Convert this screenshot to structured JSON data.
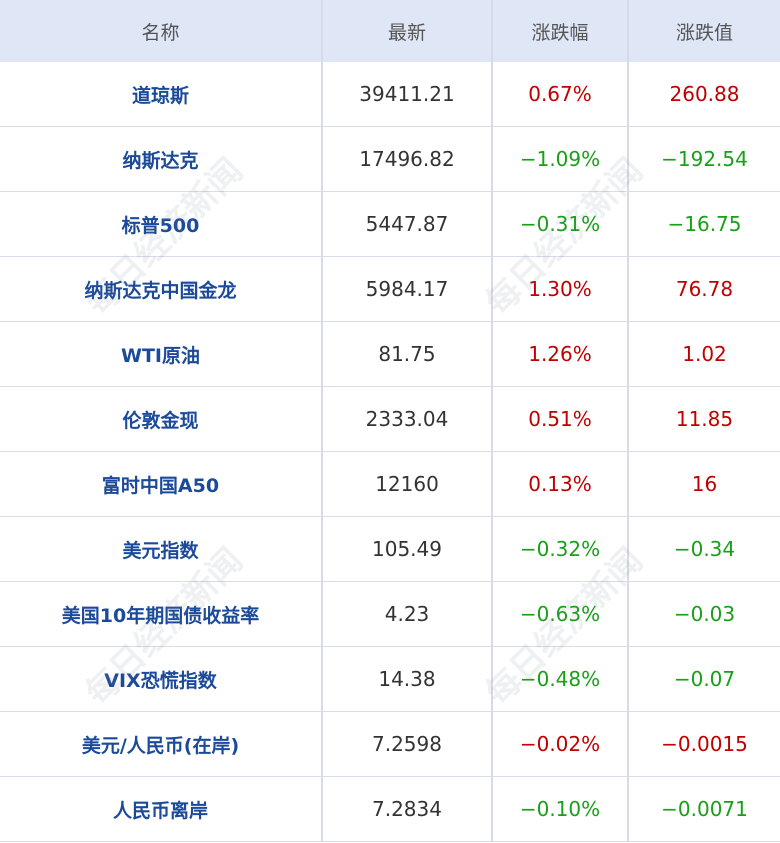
{
  "header": [
    "名称",
    "最新",
    "涨跌幅",
    "涨跌值"
  ],
  "watermark": "每日经济新闻",
  "rows": [
    {
      "name": "道琼斯",
      "latest": "39411.21",
      "pct": "0.67%",
      "change": "260.88",
      "color": "#c00000"
    },
    {
      "name": "纳斯达克",
      "latest": "17496.82",
      "pct": "−1.09%",
      "change": "−192.54",
      "color": "#18a018"
    },
    {
      "name": "标普500",
      "latest": "5447.87",
      "pct": "−0.31%",
      "change": "−16.75",
      "color": "#18a018"
    },
    {
      "name": "纳斯达克中国金龙",
      "latest": "5984.17",
      "pct": "1.30%",
      "change": "76.78",
      "color": "#c00000"
    },
    {
      "name": "WTI原油",
      "latest": "81.75",
      "pct": "1.26%",
      "change": "1.02",
      "color": "#c00000"
    },
    {
      "name": "伦敦金现",
      "latest": "2333.04",
      "pct": "0.51%",
      "change": "11.85",
      "color": "#c00000"
    },
    {
      "name": "富时中国A50",
      "latest": "12160",
      "pct": "0.13%",
      "change": "16",
      "color": "#c00000"
    },
    {
      "name": "美元指数",
      "latest": "105.49",
      "pct": "−0.32%",
      "change": "−0.34",
      "color": "#18a018"
    },
    {
      "name": "美国10年期国债收益率",
      "latest": "4.23",
      "pct": "−0.63%",
      "change": "−0.03",
      "color": "#18a018"
    },
    {
      "name": "VIX恐慌指数",
      "latest": "14.38",
      "pct": "−0.48%",
      "change": "−0.07",
      "color": "#18a018"
    },
    {
      "name": "美元/人民币(在岸)",
      "latest": "7.2598",
      "pct": "−0.02%",
      "change": "−0.0015",
      "color": "#c00000"
    },
    {
      "name": "人民币离岸",
      "latest": "7.2834",
      "pct": "−0.10%",
      "change": "−0.0071",
      "color": "#18a018"
    }
  ]
}
